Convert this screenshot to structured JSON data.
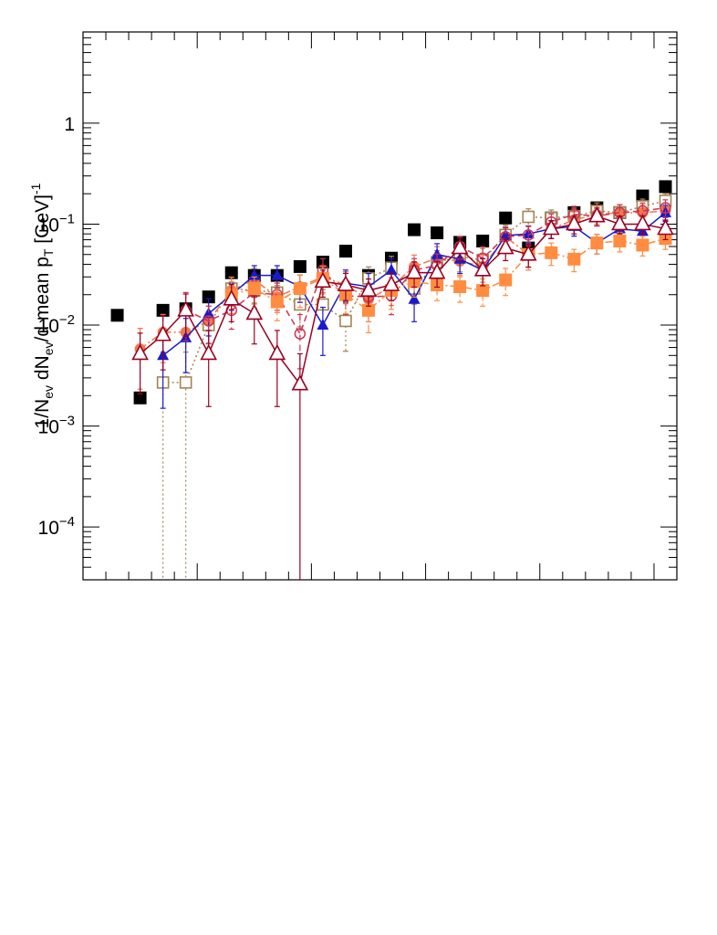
{
  "chart_data": {
    "type": "scatter",
    "title": "",
    "ylabel": "1/N_{ev} dN_{ev}/d mean p_{T} [GeV]^{-1}",
    "xlabel": "",
    "yscale": "log",
    "ylim": [
      3e-05,
      8.0
    ],
    "xlim": [
      0,
      26
    ],
    "yticks": [
      {
        "value": 1,
        "mant": "1",
        "exp": ""
      },
      {
        "value": 0.1,
        "mant": "10",
        "exp": "−1"
      },
      {
        "value": 0.01,
        "mant": "10",
        "exp": "−2"
      },
      {
        "value": 0.001,
        "mant": "10",
        "exp": "−3"
      },
      {
        "value": 0.0001,
        "mant": "10",
        "exp": "−4"
      }
    ],
    "x": [
      1.5,
      2.5,
      3.5,
      4.5,
      5.5,
      6.5,
      7.5,
      8.5,
      9.5,
      10.5,
      11.5,
      12.5,
      13.5,
      14.5,
      15.5,
      16.5,
      17.5,
      18.5,
      19.5,
      20.5,
      21.5,
      22.5,
      23.5,
      24.5,
      25.5
    ],
    "series": [
      {
        "marker": "square-filled",
        "color": "#000000",
        "line": "none",
        "values": [
          0.0125,
          0.0019,
          0.014,
          0.0145,
          0.019,
          0.033,
          0.031,
          0.031,
          0.038,
          0.042,
          0.054,
          0.031,
          0.046,
          0.088,
          0.082,
          0.066,
          0.068,
          0.115,
          0.058,
          0.115,
          0.13,
          0.145,
          0.13,
          0.19,
          0.235
        ],
        "err": [
          0,
          0,
          0,
          0,
          0,
          0,
          0,
          0,
          0,
          0,
          0,
          0,
          0,
          0,
          0,
          0,
          0,
          0,
          0,
          0,
          0,
          0,
          0,
          0,
          0
        ]
      },
      {
        "marker": "square-open",
        "color": "#a48450",
        "line": "dotted",
        "values": [
          null,
          null,
          0.0027,
          0.0027,
          0.01,
          0.023,
          0.022,
          0.021,
          0.016,
          0.016,
          0.011,
          0.029,
          0.037,
          0.023,
          0.042,
          0.048,
          0.044,
          0.078,
          0.118,
          0.115,
          0.12,
          0.135,
          0.13,
          0.15,
          0.17
        ],
        "err": [
          0,
          0,
          0.999,
          0.999,
          0.35,
          0.3,
          0.25,
          0.28,
          0.4,
          0.4,
          0.5,
          0.3,
          0.3,
          0.3,
          0.3,
          0.3,
          0.3,
          0.25,
          0.2,
          0.2,
          0.2,
          0.2,
          0.2,
          0.18,
          0.18
        ]
      },
      {
        "marker": "circle-filled",
        "color": "#f0784a",
        "line": "dashdot",
        "values": [
          null,
          0.0058,
          0.0085,
          0.0085,
          0.011,
          0.022,
          0.028,
          0.019,
          0.024,
          0.03,
          0.025,
          0.018,
          0.024,
          0.038,
          0.046,
          0.043,
          0.038,
          0.075,
          0.05,
          0.09,
          0.11,
          0.125,
          0.13,
          0.13,
          0.135
        ],
        "err": [
          0,
          0.6,
          0.5,
          0.6,
          0.4,
          0.35,
          0.3,
          0.3,
          0.3,
          0.3,
          0.35,
          0.4,
          0.35,
          0.3,
          0.3,
          0.3,
          0.3,
          0.25,
          0.3,
          0.2,
          0.2,
          0.2,
          0.2,
          0.2,
          0.2
        ]
      },
      {
        "marker": "triangle-filled",
        "color": "#1a1acc",
        "line": "solid",
        "values": [
          null,
          null,
          0.005,
          0.0075,
          0.013,
          0.02,
          0.031,
          0.031,
          0.024,
          0.01,
          0.026,
          0.024,
          0.035,
          0.018,
          0.05,
          0.045,
          0.035,
          0.077,
          0.08,
          0.09,
          0.095,
          0.065,
          0.09,
          0.085,
          0.13
        ],
        "err": [
          0,
          0,
          0.7,
          0.55,
          0.4,
          0.3,
          0.25,
          0.25,
          0.3,
          0.5,
          0.35,
          0.35,
          0.3,
          0.4,
          0.28,
          0.28,
          0.3,
          0.2,
          0.2,
          0.2,
          0.2,
          0.22,
          0.2,
          0.2,
          0.18
        ]
      },
      {
        "marker": "circle-open",
        "color": "#cc3355",
        "line": "dashed",
        "values": [
          null,
          null,
          null,
          0.014,
          0.011,
          0.014,
          0.021,
          0.02,
          0.0082,
          0.035,
          0.0195,
          0.019,
          0.0195,
          0.035,
          0.039,
          0.06,
          0.046,
          0.075,
          0.078,
          0.105,
          0.125,
          0.12,
          0.13,
          0.135,
          0.145
        ],
        "err": [
          0,
          0,
          0,
          0.5,
          0.4,
          0.35,
          0.3,
          0.3,
          0.55,
          0.3,
          0.35,
          0.35,
          0.35,
          0.3,
          0.3,
          0.25,
          0.3,
          0.22,
          0.22,
          0.2,
          0.2,
          0.2,
          0.2,
          0.2,
          0.2
        ]
      },
      {
        "marker": "square-filled",
        "color": "#ff8c40",
        "line": "dashdot",
        "values": [
          null,
          null,
          null,
          null,
          null,
          0.02,
          0.023,
          0.017,
          0.023,
          0.029,
          0.02,
          0.014,
          0.022,
          0.027,
          0.025,
          0.024,
          0.022,
          0.028,
          0.05,
          0.052,
          0.045,
          0.065,
          0.068,
          0.062,
          0.072
        ],
        "err": [
          0,
          0,
          0,
          0,
          0,
          0.35,
          0.3,
          0.35,
          0.35,
          0.3,
          0.35,
          0.4,
          0.35,
          0.3,
          0.3,
          0.3,
          0.3,
          0.3,
          0.25,
          0.25,
          0.25,
          0.22,
          0.22,
          0.22,
          0.22
        ]
      },
      {
        "marker": "triangle-open",
        "color": "#990022",
        "line": "solid",
        "values": [
          null,
          0.0052,
          0.008,
          0.014,
          0.0052,
          0.018,
          0.013,
          0.0052,
          0.0026,
          0.027,
          0.025,
          0.022,
          0.025,
          0.033,
          0.033,
          0.058,
          0.035,
          0.058,
          0.05,
          0.09,
          0.1,
          0.12,
          0.1,
          0.1,
          0.09
        ],
        "err": [
          0,
          0.6,
          0.55,
          0.45,
          0.7,
          0.4,
          0.5,
          0.7,
          0.999,
          0.3,
          0.3,
          0.3,
          0.3,
          0.28,
          0.28,
          0.25,
          0.3,
          0.25,
          0.25,
          0.2,
          0.2,
          0.2,
          0.2,
          0.2,
          0.22
        ]
      }
    ]
  }
}
